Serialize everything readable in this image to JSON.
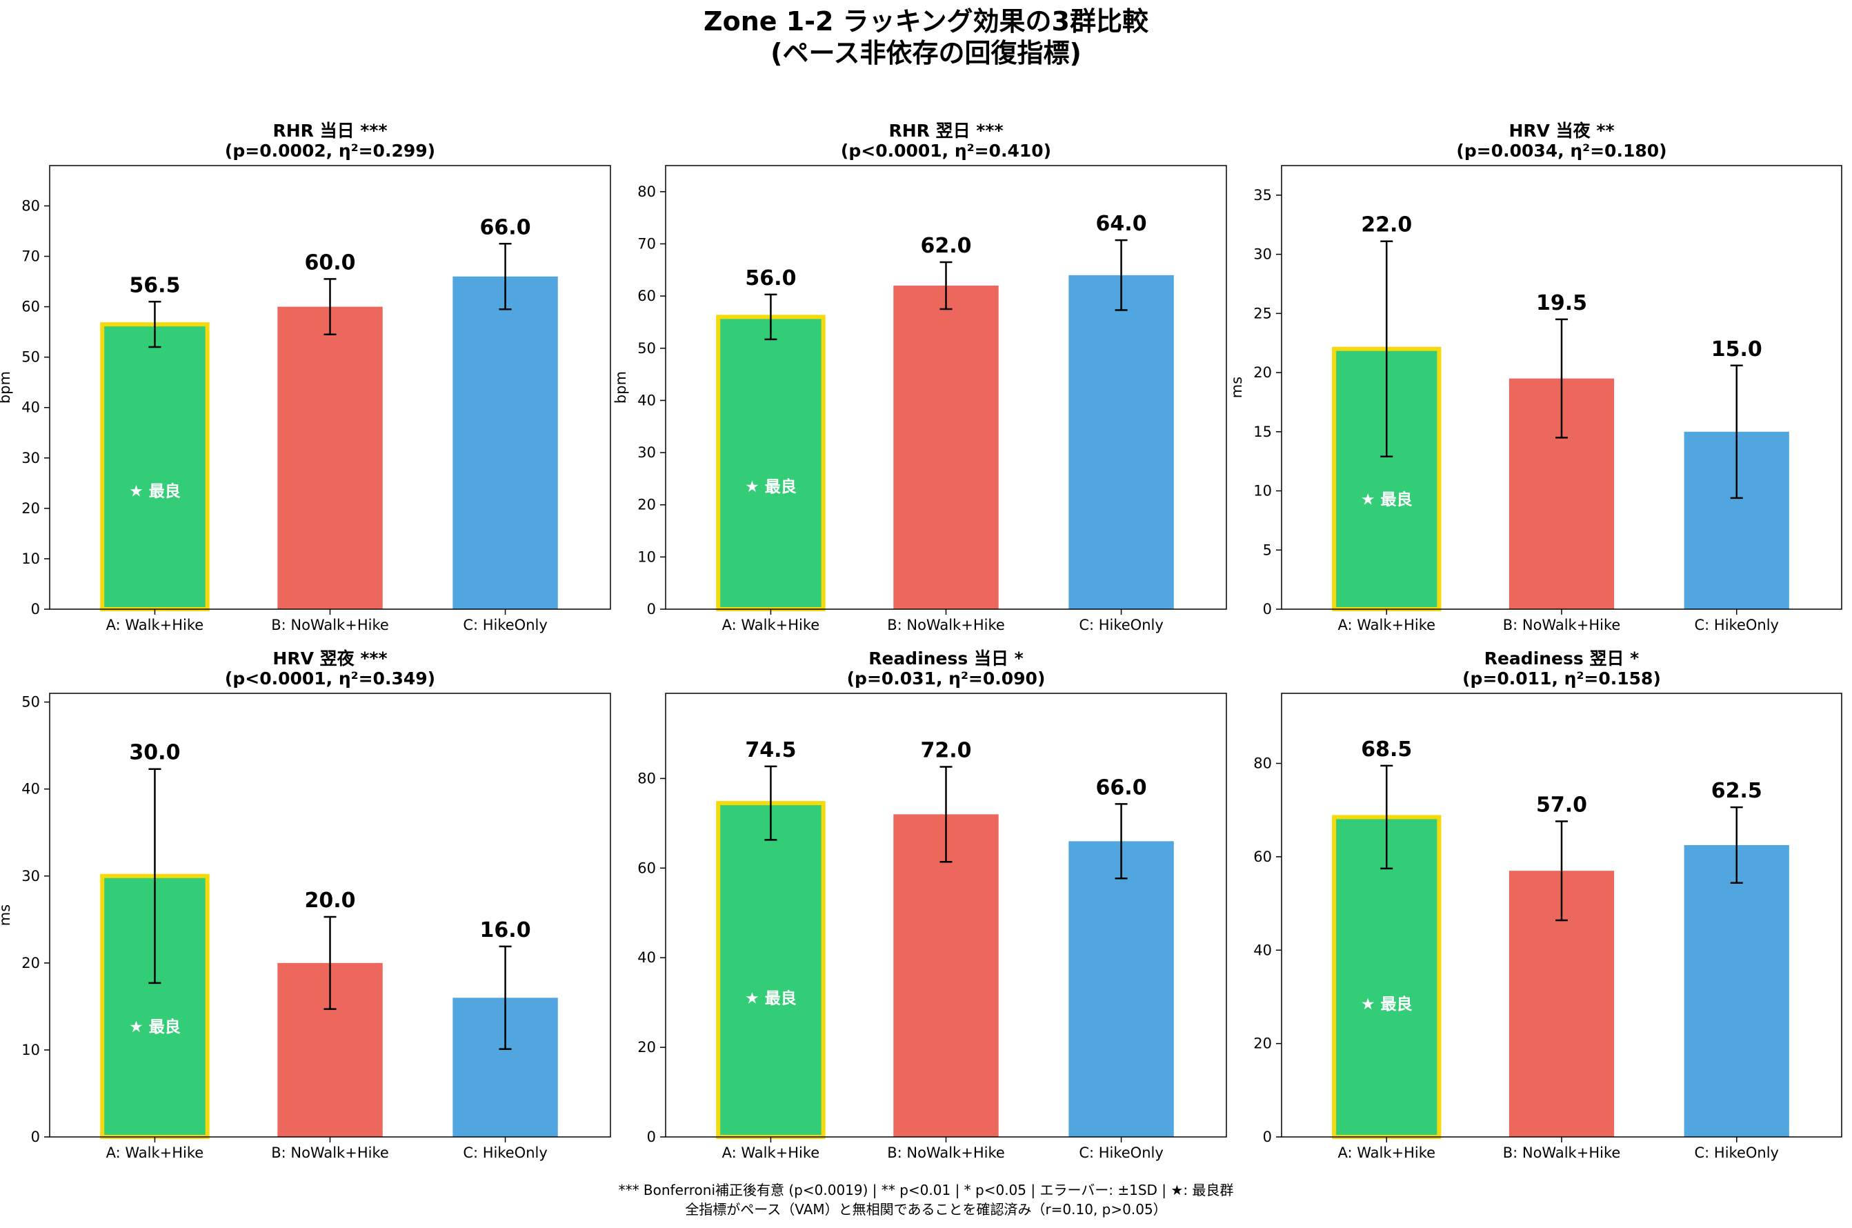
{
  "page": {
    "title_line1": "Zone 1-2 ラッキング効果の3群比較",
    "title_line2": "(ペース非依存の回復指標)",
    "footnote_line1": "*** Bonferroni補正後有意 (p<0.0019)  |  ** p<0.01  |  * p<0.05  |  エラーバー: ±1SD  |  ★: 最良群",
    "footnote_line2": "全指標がペース（VAM）と無相関であることを確認済み（r=0.10, p>0.05）"
  },
  "colors": {
    "A": "#33cc77",
    "B": "#ec685d",
    "C": "#52a6e0",
    "highlight": "#f5d90a"
  },
  "chart_data": [
    {
      "type": "bar",
      "title": "RHR 当日 ***",
      "subtitle": "(p=0.0002, η²=0.299)",
      "ylabel": "bpm",
      "categories": [
        "A: Walk+Hike",
        "B: NoWalk+Hike",
        "C: HikeOnly"
      ],
      "values": [
        56.5,
        60.0,
        66.0
      ],
      "value_labels": [
        "56.5",
        "60.0",
        "66.0"
      ],
      "errors": [
        4.5,
        5.5,
        6.5
      ],
      "ylim": [
        0,
        88
      ],
      "yticks": [
        0,
        10,
        20,
        30,
        40,
        50,
        60,
        70,
        80
      ],
      "best_index": 0,
      "best_label": "★ 最良",
      "best_label_y": 23.5,
      "grid": false
    },
    {
      "type": "bar",
      "title": "RHR 翌日 ***",
      "subtitle": "(p<0.0001, η²=0.410)",
      "ylabel": "bpm",
      "categories": [
        "A: Walk+Hike",
        "B: NoWalk+Hike",
        "C: HikeOnly"
      ],
      "values": [
        56.0,
        62.0,
        64.0
      ],
      "value_labels": [
        "56.0",
        "62.0",
        "64.0"
      ],
      "errors": [
        4.3,
        4.5,
        6.7
      ],
      "ylim": [
        0,
        85
      ],
      "yticks": [
        0,
        10,
        20,
        30,
        40,
        50,
        60,
        70,
        80
      ],
      "best_index": 0,
      "best_label": "★ 最良",
      "best_label_y": 23.5,
      "grid": false
    },
    {
      "type": "bar",
      "title": "HRV 当夜 **",
      "subtitle": "(p=0.0034, η²=0.180)",
      "ylabel": "ms",
      "categories": [
        "A: Walk+Hike",
        "B: NoWalk+Hike",
        "C: HikeOnly"
      ],
      "values": [
        22.0,
        19.5,
        15.0
      ],
      "value_labels": [
        "22.0",
        "19.5",
        "15.0"
      ],
      "errors": [
        9.1,
        5.0,
        5.6
      ],
      "ylim": [
        0,
        37.5
      ],
      "yticks": [
        0,
        5,
        10,
        15,
        20,
        25,
        30,
        35
      ],
      "best_index": 0,
      "best_label": "★ 最良",
      "best_label_y": 9.3,
      "grid": false
    },
    {
      "type": "bar",
      "title": "HRV 翌夜 ***",
      "subtitle": "(p<0.0001, η²=0.349)",
      "ylabel": "ms",
      "categories": [
        "A: Walk+Hike",
        "B: NoWalk+Hike",
        "C: HikeOnly"
      ],
      "values": [
        30.0,
        20.0,
        16.0
      ],
      "value_labels": [
        "30.0",
        "20.0",
        "16.0"
      ],
      "errors": [
        12.3,
        5.3,
        5.9
      ],
      "ylim": [
        0,
        51
      ],
      "yticks": [
        0,
        10,
        20,
        30,
        40,
        50
      ],
      "best_index": 0,
      "best_label": "★ 最良",
      "best_label_y": 12.7,
      "grid": false
    },
    {
      "type": "bar",
      "title": "Readiness 当日 *",
      "subtitle": "(p=0.031, η²=0.090)",
      "ylabel": "",
      "categories": [
        "A: Walk+Hike",
        "B: NoWalk+Hike",
        "C: HikeOnly"
      ],
      "values": [
        74.5,
        72.0,
        66.0
      ],
      "value_labels": [
        "74.5",
        "72.0",
        "66.0"
      ],
      "errors": [
        8.2,
        10.6,
        8.3
      ],
      "ylim": [
        0,
        99
      ],
      "yticks": [
        0,
        20,
        40,
        60,
        80
      ],
      "best_index": 0,
      "best_label": "★ 最良",
      "best_label_y": 31.0,
      "grid": false
    },
    {
      "type": "bar",
      "title": "Readiness 翌日 *",
      "subtitle": "(p=0.011, η²=0.158)",
      "ylabel": "",
      "categories": [
        "A: Walk+Hike",
        "B: NoWalk+Hike",
        "C: HikeOnly"
      ],
      "values": [
        68.5,
        57.0,
        62.5
      ],
      "value_labels": [
        "68.5",
        "57.0",
        "62.5"
      ],
      "errors": [
        11.0,
        10.6,
        8.1
      ],
      "ylim": [
        0,
        95
      ],
      "yticks": [
        0,
        20,
        40,
        60,
        80
      ],
      "best_index": 0,
      "best_label": "★ 最良",
      "best_label_y": 28.5,
      "grid": false
    }
  ]
}
